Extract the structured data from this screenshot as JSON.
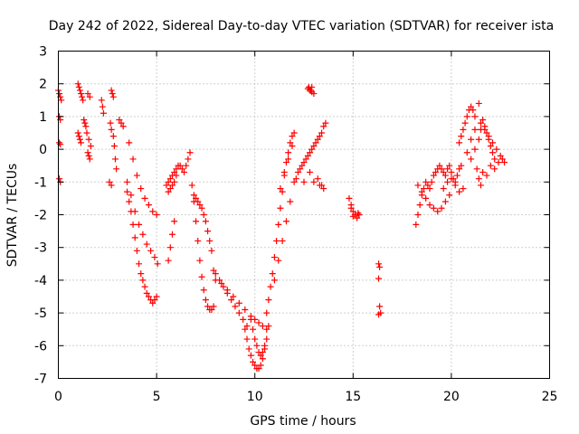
{
  "chart_data": {
    "type": "scatter",
    "title": "Day 242 of 2022, Sidereal Day-to-day VTEC variation (SDTVAR) for receiver ista",
    "xlabel": "GPS time / hours",
    "ylabel": "SDTVAR / TECUs",
    "xlim": [
      0,
      25
    ],
    "ylim": [
      -7,
      3
    ],
    "xticks": [
      0,
      5,
      10,
      15,
      20,
      25
    ],
    "yticks": [
      -7,
      -6,
      -5,
      -4,
      -3,
      -2,
      -1,
      0,
      1,
      2,
      3
    ],
    "grid": true,
    "marker": "+",
    "color": "#ff0000",
    "series": [
      {
        "name": "SDTVAR",
        "x": [
          0.0,
          0.05,
          0.1,
          0.15,
          0.05,
          0.1,
          0.05,
          0.1,
          0.05,
          0.1,
          1.0,
          1.05,
          1.1,
          1.15,
          1.2,
          1.25,
          1.0,
          1.05,
          1.1,
          1.15,
          1.3,
          1.35,
          1.4,
          1.5,
          1.6,
          1.45,
          1.55,
          1.65,
          1.5,
          1.55,
          1.6,
          2.2,
          2.25,
          2.3,
          2.7,
          2.75,
          2.8,
          2.65,
          2.7,
          2.8,
          2.85,
          2.9,
          2.95,
          3.1,
          3.2,
          3.3,
          2.6,
          2.7,
          3.5,
          3.6,
          3.7,
          3.8,
          3.9,
          4.0,
          4.1,
          4.2,
          4.3,
          4.4,
          4.5,
          4.6,
          4.7,
          4.8,
          4.9,
          5.0,
          3.6,
          3.8,
          4.0,
          4.2,
          4.4,
          4.6,
          4.8,
          5.0,
          3.5,
          3.7,
          3.9,
          4.1,
          4.3,
          4.5,
          4.7,
          4.9,
          5.05,
          5.6,
          5.7,
          5.8,
          5.9,
          6.0,
          5.6,
          5.7,
          5.8,
          5.9,
          5.5,
          5.6,
          5.7,
          5.8,
          5.9,
          6.0,
          6.1,
          6.2,
          6.3,
          6.4,
          6.5,
          6.6,
          6.7,
          6.8,
          6.9,
          7.0,
          7.1,
          7.2,
          7.3,
          7.4,
          7.5,
          7.6,
          7.7,
          7.8,
          7.9,
          6.9,
          7.0,
          7.1,
          7.2,
          7.3,
          7.4,
          7.5,
          7.6,
          7.7,
          7.8,
          7.9,
          8.0,
          8.2,
          8.4,
          8.6,
          8.8,
          9.0,
          9.2,
          9.4,
          9.6,
          8.0,
          8.3,
          8.6,
          8.9,
          9.2,
          9.5,
          9.8,
          10.0,
          10.2,
          10.4,
          10.6,
          9.5,
          9.6,
          9.7,
          9.8,
          9.9,
          10.0,
          10.1,
          10.2,
          10.3,
          10.4,
          10.5,
          10.6,
          10.7,
          9.8,
          9.9,
          10.0,
          10.1,
          10.2,
          10.3,
          10.4,
          10.5,
          10.6,
          10.7,
          10.8,
          10.9,
          11.0,
          11.1,
          11.2,
          11.3,
          11.4,
          11.5,
          11.6,
          11.7,
          11.8,
          11.9,
          12.0,
          11.0,
          11.2,
          11.4,
          11.6,
          11.8,
          12.0,
          11.3,
          11.5,
          11.7,
          11.9,
          12.1,
          12.2,
          12.3,
          12.4,
          12.5,
          12.6,
          12.7,
          12.8,
          12.9,
          13.0,
          13.1,
          13.2,
          13.3,
          13.4,
          13.5,
          13.6,
          12.5,
          12.8,
          13.0,
          13.3,
          13.5,
          13.2,
          13.4,
          12.9,
          12.8,
          13.0,
          12.9,
          12.7,
          12.75,
          12.85,
          14.8,
          14.9,
          15.0,
          15.1,
          15.2,
          15.3,
          15.25,
          15.0,
          14.9,
          15.1,
          15.3,
          16.3,
          16.35,
          16.3,
          16.35,
          16.4,
          16.3,
          18.2,
          18.3,
          18.4,
          18.5,
          18.6,
          18.7,
          18.8,
          18.9,
          19.0,
          19.1,
          19.2,
          19.3,
          18.3,
          18.5,
          18.7,
          18.9,
          19.1,
          19.3,
          19.5,
          19.7,
          19.9,
          19.4,
          19.5,
          19.6,
          19.7,
          19.8,
          19.9,
          20.0,
          20.1,
          20.2,
          20.3,
          20.4,
          20.5,
          19.6,
          19.8,
          20.0,
          20.2,
          20.4,
          20.6,
          20.4,
          20.5,
          20.6,
          20.7,
          20.8,
          20.9,
          21.0,
          21.1,
          21.2,
          21.0,
          21.2,
          21.4,
          21.5,
          21.6,
          21.7,
          21.8,
          21.9,
          22.0,
          22.1,
          22.2,
          21.5,
          21.7,
          21.9,
          22.1,
          22.3,
          22.5,
          22.7,
          21.3,
          21.4,
          21.5,
          21.6,
          22.0,
          22.2,
          22.4,
          22.6,
          20.8,
          21.0,
          21.2,
          21.4,
          21.8
        ],
        "y": [
          1.8,
          1.7,
          1.6,
          1.5,
          1.0,
          0.9,
          0.2,
          0.15,
          -0.9,
          -1.0,
          2.0,
          1.9,
          1.8,
          1.7,
          1.6,
          1.5,
          0.5,
          0.4,
          0.3,
          0.2,
          0.9,
          0.8,
          0.7,
          1.7,
          1.6,
          0.5,
          0.3,
          0.1,
          -0.1,
          -0.2,
          -0.3,
          1.5,
          1.3,
          1.1,
          1.8,
          1.7,
          1.6,
          0.8,
          0.6,
          0.4,
          0.1,
          -0.3,
          -0.6,
          0.9,
          0.8,
          0.7,
          -1.0,
          -1.1,
          -1.3,
          -1.6,
          -1.9,
          -2.3,
          -2.7,
          -3.1,
          -3.5,
          -3.8,
          -4.0,
          -4.2,
          -4.4,
          -4.5,
          -4.6,
          -4.7,
          -4.6,
          -4.5,
          0.2,
          -0.3,
          -0.8,
          -1.2,
          -1.5,
          -1.7,
          -1.9,
          -2.0,
          -1.0,
          -1.4,
          -1.9,
          -2.3,
          -2.6,
          -2.9,
          -3.1,
          -3.3,
          -3.5,
          -1.3,
          -1.2,
          -1.1,
          -1.0,
          -0.8,
          -3.4,
          -3.0,
          -2.6,
          -2.2,
          -1.1,
          -1.0,
          -0.9,
          -0.8,
          -0.7,
          -0.6,
          -0.5,
          -0.5,
          -0.6,
          -0.7,
          -0.5,
          -0.3,
          -0.1,
          -1.1,
          -1.6,
          -2.2,
          -2.8,
          -3.4,
          -3.9,
          -4.3,
          -4.6,
          -4.8,
          -4.9,
          -4.9,
          -4.8,
          -1.4,
          -1.5,
          -1.6,
          -1.7,
          -1.8,
          -2.0,
          -2.2,
          -2.5,
          -2.8,
          -3.1,
          -3.7,
          -3.8,
          -4.0,
          -4.2,
          -4.4,
          -4.6,
          -4.8,
          -5.0,
          -5.2,
          -5.4,
          -4.0,
          -4.1,
          -4.3,
          -4.5,
          -4.7,
          -4.9,
          -5.1,
          -5.2,
          -5.3,
          -5.4,
          -5.5,
          -5.5,
          -5.8,
          -6.1,
          -6.3,
          -6.5,
          -6.6,
          -6.7,
          -6.7,
          -6.6,
          -6.4,
          -6.1,
          -5.8,
          -5.4,
          -5.2,
          -5.5,
          -5.8,
          -6.0,
          -6.2,
          -6.3,
          -6.2,
          -6.0,
          -5.0,
          -4.6,
          -4.2,
          -3.8,
          -3.3,
          -2.8,
          -2.3,
          -1.8,
          -1.3,
          -0.8,
          -0.4,
          -0.1,
          0.2,
          0.4,
          0.5,
          -4.0,
          -3.4,
          -2.8,
          -2.2,
          -1.6,
          -1.0,
          -1.2,
          -0.7,
          -0.3,
          0.1,
          -0.9,
          -0.7,
          -0.6,
          -0.5,
          -0.4,
          -0.3,
          -0.2,
          -0.1,
          0.0,
          0.1,
          0.2,
          0.3,
          0.4,
          0.5,
          0.7,
          0.8,
          -1.0,
          -0.7,
          -1.0,
          -1.1,
          -1.2,
          -0.9,
          -1.1,
          1.9,
          1.8,
          1.7,
          1.75,
          1.85,
          1.9,
          1.8,
          -1.5,
          -1.7,
          -1.9,
          -2.0,
          -2.1,
          -2.0,
          -1.95,
          -2.05,
          -1.8,
          -2.0,
          -2.0,
          -3.5,
          -3.6,
          -3.95,
          -4.8,
          -5.0,
          -5.05,
          -2.3,
          -2.0,
          -1.7,
          -1.4,
          -1.2,
          -1.0,
          -1.1,
          -1.2,
          -1.0,
          -0.8,
          -0.7,
          -0.6,
          -1.1,
          -1.3,
          -1.5,
          -1.7,
          -1.8,
          -1.9,
          -1.8,
          -1.6,
          -1.4,
          -0.5,
          -0.6,
          -0.7,
          -0.8,
          -0.6,
          -0.5,
          -0.7,
          -0.9,
          -1.0,
          -0.8,
          -0.6,
          -0.5,
          -1.2,
          -1.0,
          -0.9,
          -1.1,
          -1.3,
          -1.2,
          0.2,
          0.4,
          0.6,
          0.8,
          1.0,
          1.2,
          1.3,
          1.2,
          1.0,
          -0.3,
          0.0,
          0.3,
          0.6,
          0.9,
          0.7,
          0.5,
          0.3,
          0.1,
          -0.1,
          -0.3,
          0.8,
          0.6,
          0.4,
          0.2,
          0.0,
          -0.2,
          -0.4,
          -0.6,
          -0.9,
          -1.1,
          -0.7,
          -0.5,
          -0.6,
          -0.4,
          -0.3,
          -0.1,
          0.3,
          0.6,
          1.4,
          -0.8
        ]
      }
    ]
  }
}
